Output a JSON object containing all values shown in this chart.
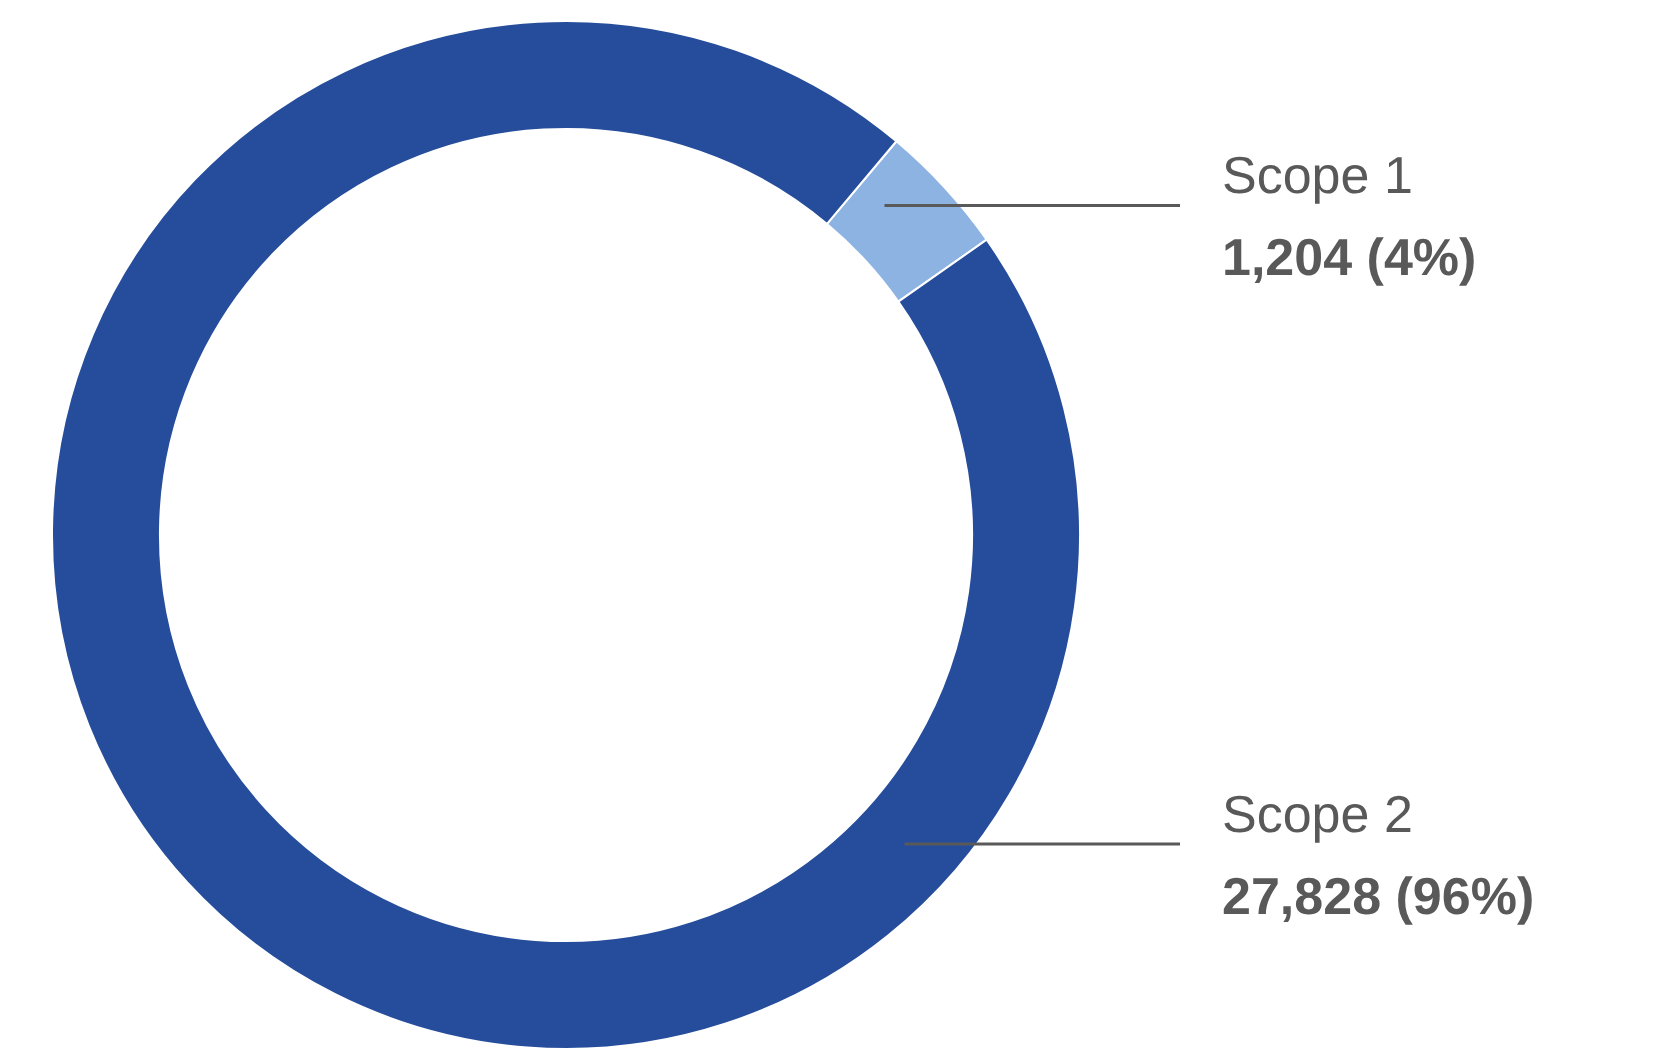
{
  "chart_data": {
    "type": "donut",
    "categories": [
      "Scope 1",
      "Scope 2"
    ],
    "values": [
      1204,
      27828
    ],
    "colors": [
      "#8db3e2",
      "#264d9b"
    ],
    "value_labels": [
      "1,204 (4%)",
      "27,828 (96%)"
    ],
    "legend": false
  }
}
